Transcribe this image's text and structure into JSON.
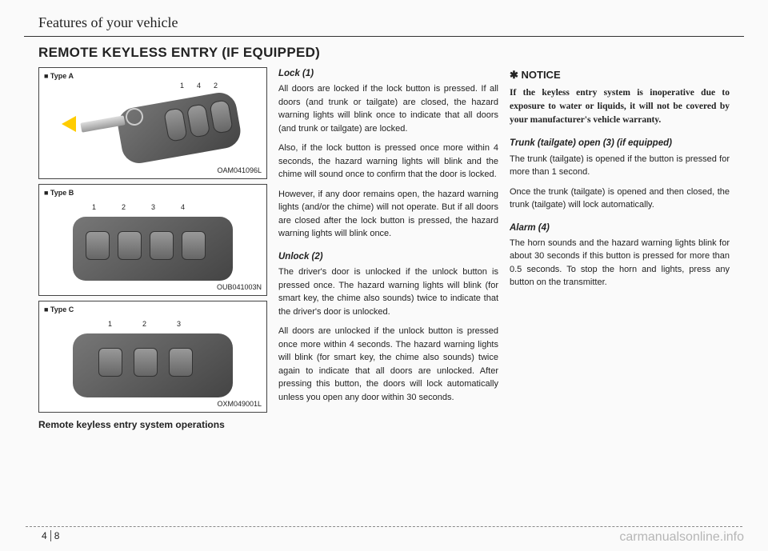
{
  "header": "Features of your vehicle",
  "section_title": "REMOTE KEYLESS ENTRY (IF EQUIPPED)",
  "figures": {
    "a": {
      "label": "■ Type A",
      "code": "OAM041096L",
      "numbers": [
        "1",
        "4",
        "2"
      ]
    },
    "b": {
      "label": "■ Type B",
      "code": "OUB041003N",
      "numbers": [
        "1",
        "2",
        "3",
        "4"
      ]
    },
    "c": {
      "label": "■ Type C",
      "code": "OXM049001L",
      "numbers": [
        "1",
        "2",
        "3"
      ]
    }
  },
  "left_subtitle": "Remote keyless entry system operations",
  "col2": {
    "lock_title": "Lock (1)",
    "lock_p1": "All doors are locked if the lock button is pressed. If all doors (and trunk or tailgate) are closed, the hazard warning lights will blink once to indicate that all doors (and trunk or tailgate) are locked.",
    "lock_p2": "Also, if the lock button is pressed once more within 4 seconds, the hazard warning lights will blink and the chime will sound once to confirm that the door is locked.",
    "lock_p3": "However, if any door remains open, the hazard warning lights (and/or the chime) will not operate. But if all doors are closed after the lock button is pressed, the hazard warning lights will blink once.",
    "unlock_title": "Unlock (2)",
    "unlock_p1": "The driver's door is unlocked if the unlock button is pressed once. The hazard warning lights will blink (for smart key, the chime also sounds) twice to indicate that the driver's door is unlocked.",
    "unlock_p2": "All doors are unlocked if the unlock button is pressed once more within 4 seconds. The hazard warning lights will blink (for smart key, the chime also sounds) twice again to indicate that all doors are unlocked. After pressing this button, the doors will lock automatically unless you open any door within 30 seconds."
  },
  "col3": {
    "notice_title": "✱ NOTICE",
    "notice_body": "If the keyless entry system is inoperative due to exposure to water or liquids, it will not be covered by your manufacturer's vehicle warranty.",
    "trunk_title": "Trunk (tailgate) open (3) (if equipped)",
    "trunk_p1": "The trunk (tailgate) is opened if the button is pressed for more than 1 second.",
    "trunk_p2": "Once the trunk (tailgate) is opened and then closed, the trunk (tailgate) will lock automatically.",
    "alarm_title": "Alarm (4)",
    "alarm_p": "The horn sounds and the hazard warning lights blink for about 30 seconds if this button is pressed for more than 0.5 seconds. To stop the horn and lights, press any button on the transmitter."
  },
  "page": {
    "chapter": "4",
    "number": "8"
  },
  "watermark": "carmanualsonline.info",
  "colors": {
    "text": "#222222",
    "border": "#333333",
    "accent_yellow": "#ffcc00",
    "figure_bg": "#ffffff",
    "watermark": "rgba(0,0,0,0.28)"
  }
}
